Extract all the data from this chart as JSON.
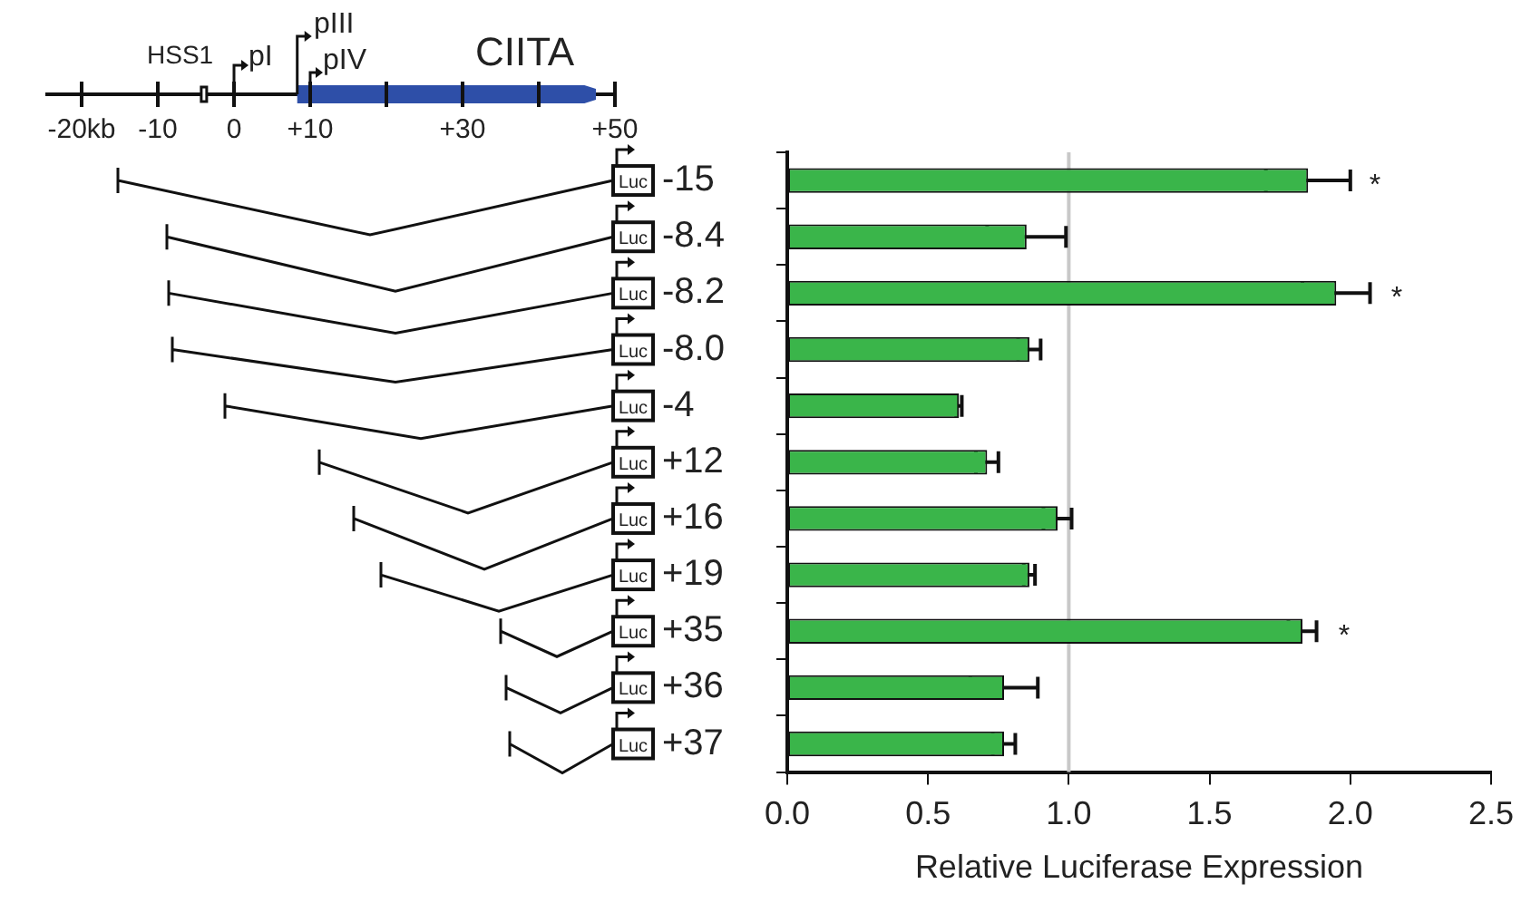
{
  "chart_data": {
    "type": "bar",
    "orientation": "horizontal",
    "xlabel": "Relative Luciferase Expression",
    "categories": [
      "-15",
      "-8.4",
      "-8.2",
      "-8.0",
      "-4",
      "+12",
      "+16",
      "+19",
      "+35",
      "+36",
      "+37"
    ],
    "values": [
      1.85,
      0.85,
      1.95,
      0.86,
      0.61,
      0.71,
      0.96,
      0.86,
      1.83,
      0.77,
      0.77
    ],
    "errors": [
      0.15,
      0.14,
      0.12,
      0.04,
      0.01,
      0.04,
      0.05,
      0.02,
      0.05,
      0.12,
      0.04
    ],
    "color": "#3ab54a",
    "xlim": [
      0,
      2.5
    ],
    "xticks": [
      {
        "value": 0,
        "label": "0.0"
      },
      {
        "value": 0.5,
        "label": "0.5"
      },
      {
        "value": 1,
        "label": "1.0"
      },
      {
        "value": 1.5,
        "label": "1.5"
      },
      {
        "value": 2,
        "label": "2.0"
      },
      {
        "value": 2.5,
        "label": "2.5"
      }
    ],
    "grid": false,
    "ref_lines": [
      {
        "axis": "x",
        "value": 1,
        "color": "#c8c8c8"
      }
    ],
    "annotations": [
      "*",
      "*",
      "*",
      "CIITA",
      "HSS1",
      "pI",
      "pIII",
      "pIV",
      "-20kb",
      "-10",
      "0",
      "+10",
      "+30",
      "+50",
      "Luc"
    ]
  }
}
